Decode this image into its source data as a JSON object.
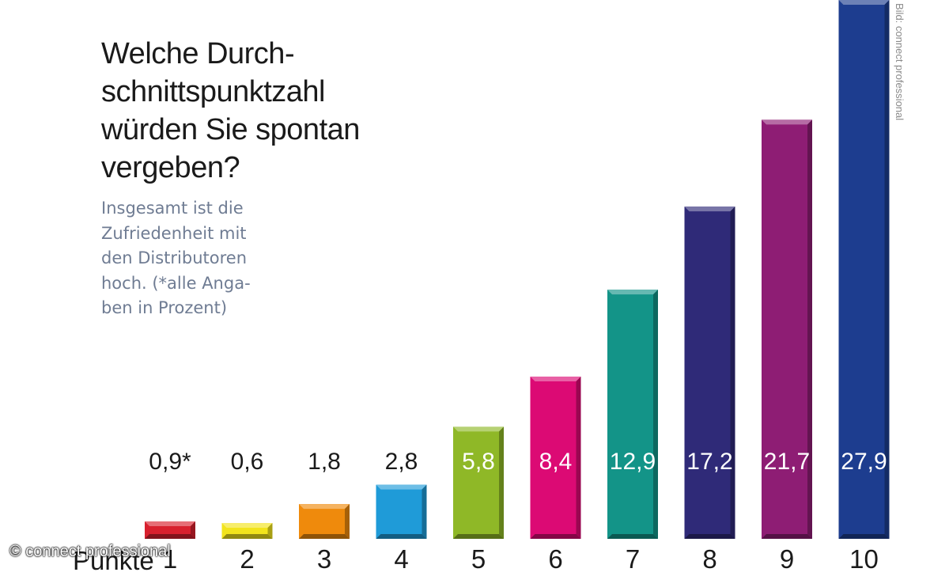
{
  "chart_data": {
    "type": "bar",
    "title_lines": [
      "Welche Durch-",
      "schnittspunktzahl",
      "würden Sie spontan",
      "vergeben?"
    ],
    "subtitle_lines": [
      "Insgesamt ist die",
      "Zufriedenheit mit",
      "den Distributoren",
      "hoch. (*alle Anga-",
      "ben in Prozent)"
    ],
    "xlabel": "Punkte",
    "ylabel": "",
    "categories": [
      "1",
      "2",
      "3",
      "4",
      "5",
      "6",
      "7",
      "8",
      "9",
      "10"
    ],
    "values": [
      0.9,
      0.6,
      1.8,
      2.8,
      5.8,
      8.4,
      12.9,
      17.2,
      21.7,
      27.9
    ],
    "data_labels": [
      "0,9*",
      "0,6",
      "1,8",
      "2,8",
      "5,8",
      "8,4",
      "12,9",
      "17,2",
      "21,7",
      "27,9"
    ],
    "ylim": [
      0,
      27.9
    ],
    "grid": false,
    "colors": [
      "#d8202e",
      "#f2e41c",
      "#ef8a0c",
      "#1f9bd8",
      "#8fb827",
      "#dc0a74",
      "#139488",
      "#2f2a78",
      "#8e1d74",
      "#1d3d8f"
    ]
  },
  "credit": "Bild: connect professional",
  "copyright": "© connect professional"
}
